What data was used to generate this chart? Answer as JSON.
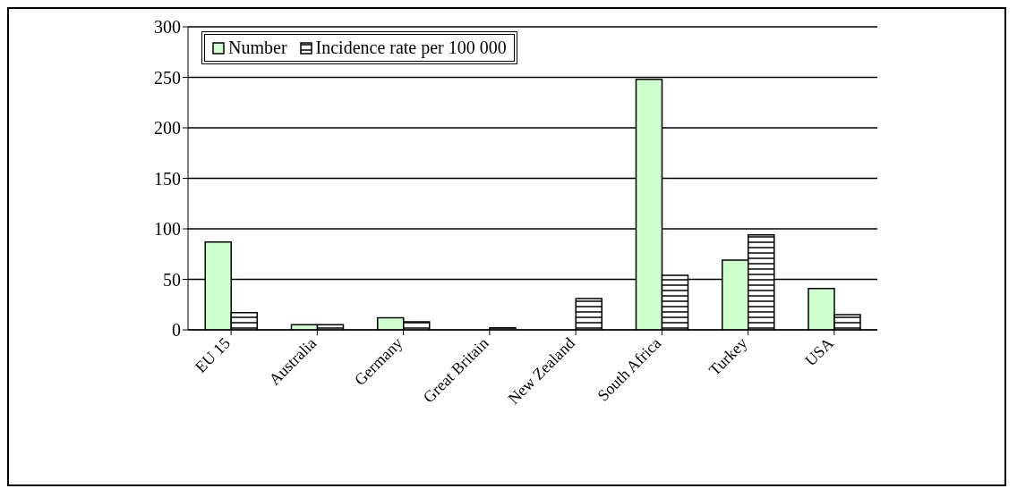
{
  "chart_data": {
    "type": "bar",
    "categories": [
      "EU 15",
      "Australia",
      "Germany",
      "Great Britain",
      "New Zealand",
      "South Africa",
      "Turkey",
      "USA"
    ],
    "series": [
      {
        "name": "Number",
        "color": "#ccffcc",
        "values": [
          87,
          5,
          12,
          0,
          0,
          248,
          69,
          41
        ]
      },
      {
        "name": "Incidence rate per 100 000",
        "color": "#000000",
        "values": [
          17,
          5,
          8,
          2,
          31,
          54,
          94,
          15
        ]
      }
    ],
    "ylim": [
      0,
      300
    ],
    "yticks": [
      0,
      50,
      100,
      150,
      200,
      250,
      300
    ],
    "grid": "y",
    "legend": "top left"
  }
}
